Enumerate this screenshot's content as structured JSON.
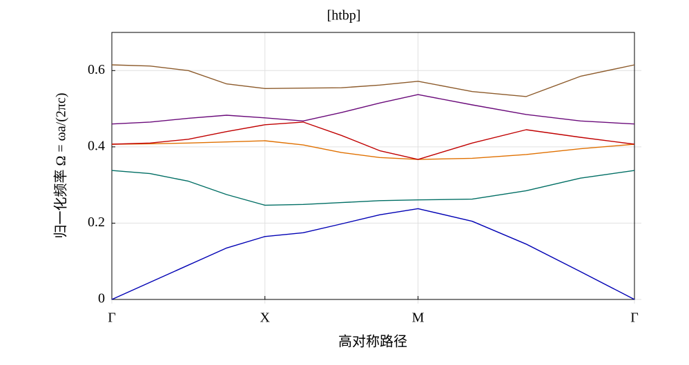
{
  "chart_data": {
    "type": "line",
    "title": "[htbp]",
    "x_label": "高对称路径",
    "y_label": "归一化频率 Ω = ωa/(2πc)",
    "x": [
      0,
      0.25,
      0.5,
      0.75,
      1,
      1.25,
      1.5,
      1.75,
      2,
      2.354,
      2.707,
      3.061,
      3.414
    ],
    "series": [
      {
        "color": "#0000b4",
        "values": [
          0,
          0.045,
          0.09,
          0.135,
          0.165,
          0.175,
          0.198,
          0.222,
          0.238,
          0.205,
          0.145,
          0.073,
          0
        ]
      },
      {
        "color": "#006e64",
        "values": [
          0.338,
          0.33,
          0.31,
          0.275,
          0.247,
          0.249,
          0.254,
          0.259,
          0.261,
          0.263,
          0.285,
          0.318,
          0.338
        ]
      },
      {
        "color": "#e07000",
        "values": [
          0.407,
          0.408,
          0.41,
          0.413,
          0.416,
          0.405,
          0.385,
          0.372,
          0.367,
          0.37,
          0.38,
          0.395,
          0.407
        ]
      },
      {
        "color": "#c00000",
        "values": [
          0.407,
          0.41,
          0.42,
          0.44,
          0.458,
          0.465,
          0.43,
          0.39,
          0.367,
          0.41,
          0.445,
          0.425,
          0.407
        ]
      },
      {
        "color": "#6a0a7a",
        "values": [
          0.46,
          0.465,
          0.475,
          0.483,
          0.476,
          0.468,
          0.49,
          0.515,
          0.537,
          0.51,
          0.485,
          0.468,
          0.46
        ]
      },
      {
        "color": "#8c5a2a",
        "values": [
          0.615,
          0.612,
          0.6,
          0.565,
          0.553,
          0.554,
          0.555,
          0.562,
          0.572,
          0.545,
          0.532,
          0.585,
          0.615
        ]
      }
    ],
    "xlim": [
      0,
      3.414
    ],
    "ylim": [
      0,
      0.7
    ],
    "xticks": [
      {
        "value": 0,
        "label": "Γ"
      },
      {
        "value": 1,
        "label": "X"
      },
      {
        "value": 2,
        "label": "M"
      },
      {
        "value": 3.414,
        "label": "Γ"
      }
    ],
    "yticks": [
      0,
      0.2,
      0.4,
      0.6
    ],
    "grid": true
  }
}
